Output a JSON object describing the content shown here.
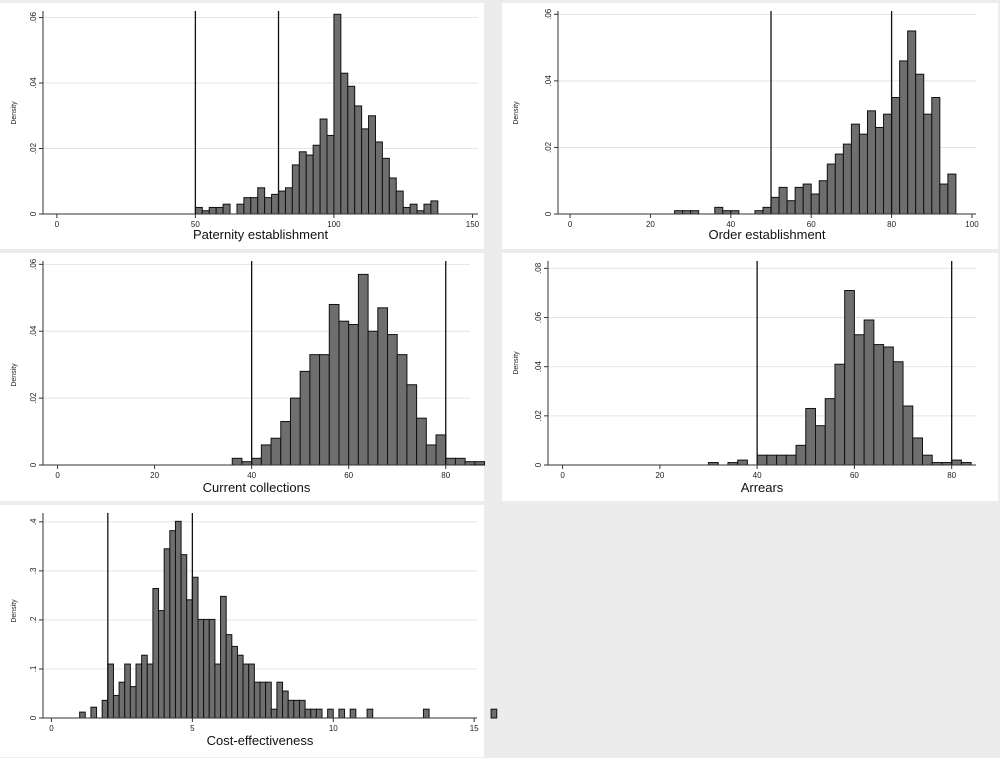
{
  "chart_data": [
    {
      "type": "bar",
      "title": "",
      "xlabel": "Paternity establishment",
      "ylabel": "Density",
      "xlim": [
        -5,
        152
      ],
      "ylim": [
        0,
        0.062
      ],
      "xticks": [
        0,
        50,
        100,
        150
      ],
      "xtick_labels": [
        "0",
        "50",
        "100",
        "150"
      ],
      "yticks": [
        0,
        0.02,
        0.04,
        0.06
      ],
      "ytick_labels": [
        "0",
        ".02",
        ".04",
        ".06"
      ],
      "vlines": [
        50,
        80
      ],
      "bin_start": 50,
      "bin_width": 2.5,
      "values": [
        0.002,
        0.001,
        0.002,
        0.002,
        0.003,
        0,
        0.003,
        0.005,
        0.005,
        0.008,
        0.005,
        0.006,
        0.007,
        0.008,
        0.015,
        0.019,
        0.018,
        0.021,
        0.029,
        0.024,
        0.061,
        0.043,
        0.039,
        0.033,
        0.026,
        0.03,
        0.022,
        0.017,
        0.011,
        0.007,
        0.002,
        0.003,
        0.001,
        0.003,
        0.004
      ],
      "grid": true,
      "fill": "#6e6e6e"
    },
    {
      "type": "bar",
      "title": "",
      "xlabel": "Order establishment",
      "ylabel": "Density",
      "xlim": [
        -3,
        101
      ],
      "ylim": [
        0,
        0.061
      ],
      "xticks": [
        0,
        20,
        40,
        60,
        80,
        100
      ],
      "xtick_labels": [
        "0",
        "20",
        "40",
        "60",
        "80",
        "100"
      ],
      "yticks": [
        0,
        0.02,
        0.04,
        0.06
      ],
      "ytick_labels": [
        "0",
        ".02",
        ".04",
        ".06"
      ],
      "vlines": [
        50,
        80
      ],
      "bin_start": 26,
      "bin_width": 2,
      "values": [
        0.001,
        0.001,
        0.001,
        0,
        0,
        0.002,
        0.001,
        0.001,
        0,
        0,
        0.001,
        0.002,
        0.005,
        0.008,
        0.004,
        0.008,
        0.009,
        0.006,
        0.01,
        0.015,
        0.018,
        0.021,
        0.027,
        0.024,
        0.031,
        0.026,
        0.03,
        0.035,
        0.046,
        0.055,
        0.042,
        0.03,
        0.035,
        0.009,
        0.012,
        0
      ],
      "grid": true,
      "fill": "#6e6e6e"
    },
    {
      "type": "bar",
      "title": "",
      "xlabel": "Current collections",
      "ylabel": "Density",
      "xlim": [
        -3,
        85
      ],
      "ylim": [
        0,
        0.061
      ],
      "xticks": [
        0,
        20,
        40,
        60,
        80
      ],
      "xtick_labels": [
        "0",
        "20",
        "40",
        "60",
        "80"
      ],
      "yticks": [
        0,
        0.02,
        0.04,
        0.06
      ],
      "ytick_labels": [
        "0",
        ".02",
        ".04",
        ".06"
      ],
      "vlines": [
        40,
        80
      ],
      "bin_start": 36,
      "bin_width": 2,
      "values": [
        0.002,
        0.001,
        0.002,
        0.006,
        0.008,
        0.013,
        0.02,
        0.028,
        0.033,
        0.033,
        0.048,
        0.043,
        0.042,
        0.057,
        0.04,
        0.047,
        0.039,
        0.033,
        0.024,
        0.014,
        0.006,
        0.009,
        0.002,
        0.002,
        0.001,
        0.001
      ],
      "grid": true,
      "fill": "#6e6e6e"
    },
    {
      "type": "bar",
      "title": "",
      "xlabel": "Arrears",
      "ylabel": "Density",
      "xlim": [
        -3,
        85
      ],
      "ylim": [
        0,
        0.083
      ],
      "xticks": [
        0,
        20,
        40,
        60,
        80
      ],
      "xtick_labels": [
        "0",
        "20",
        "40",
        "60",
        "80"
      ],
      "yticks": [
        0,
        0.02,
        0.04,
        0.06,
        0.08
      ],
      "ytick_labels": [
        "0",
        ".02",
        ".04",
        ".06",
        ".08"
      ],
      "vlines": [
        40,
        80
      ],
      "bin_start": 30,
      "bin_width": 2,
      "values": [
        0.001,
        0,
        0.001,
        0.002,
        0,
        0.004,
        0.004,
        0.004,
        0.004,
        0.008,
        0.023,
        0.016,
        0.027,
        0.041,
        0.071,
        0.053,
        0.059,
        0.049,
        0.048,
        0.042,
        0.024,
        0.011,
        0.004,
        0.001,
        0.001,
        0.002,
        0.001
      ],
      "grid": true,
      "fill": "#6e6e6e"
    },
    {
      "type": "bar",
      "title": "",
      "xlabel": "Cost-effectiveness",
      "ylabel": "Density",
      "xlim": [
        -0.3,
        15.1
      ],
      "ylim": [
        0,
        0.418
      ],
      "xticks": [
        0,
        5,
        10,
        15
      ],
      "xtick_labels": [
        "0",
        "5",
        "10",
        "15"
      ],
      "yticks": [
        0,
        0.1,
        0.2,
        0.3,
        0.4
      ],
      "ytick_labels": [
        "0",
        ".1",
        ".2",
        ".3",
        ".4"
      ],
      "vlines": [
        2,
        5
      ],
      "bin_start": 1,
      "bin_width": 0.2,
      "values": [
        0.012,
        0,
        0.022,
        0,
        0.036,
        0.11,
        0.046,
        0.073,
        0.11,
        0.064,
        0.11,
        0.128,
        0.11,
        0.264,
        0.219,
        0.345,
        0.382,
        0.401,
        0.333,
        0.241,
        0.287,
        0.201,
        0.201,
        0.201,
        0.11,
        0.248,
        0.17,
        0.146,
        0.128,
        0.11,
        0.11,
        0.073,
        0.073,
        0.073,
        0.018,
        0.073,
        0.055,
        0.036,
        0.036,
        0.036,
        0.018,
        0.018,
        0.018,
        0,
        0.018,
        0,
        0.018,
        0,
        0.018,
        0,
        0,
        0.018,
        0,
        0,
        0,
        0,
        0,
        0,
        0,
        0,
        0,
        0.018,
        0,
        0,
        0,
        0,
        0,
        0,
        0,
        0,
        0,
        0,
        0,
        0.018,
        0
      ],
      "grid": true,
      "fill": "#6e6e6e"
    }
  ]
}
